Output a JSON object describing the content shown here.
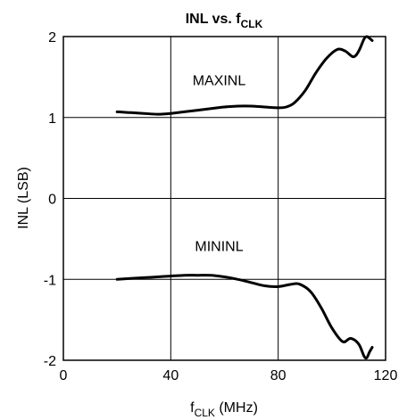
{
  "chart_data": {
    "type": "line",
    "title": {
      "main": "INL vs. f",
      "sub": "CLK"
    },
    "xlabel": {
      "main": "f",
      "sub": "CLK",
      "rest": " (MHz)"
    },
    "ylabel": "INL (LSB)",
    "xlim": [
      0,
      120
    ],
    "ylim": [
      -2,
      2
    ],
    "xticks": [
      0,
      40,
      80,
      120
    ],
    "xtick_labels": [
      "0",
      "40",
      "80",
      "120"
    ],
    "yticks": [
      -2,
      -1,
      0,
      1,
      2
    ],
    "ytick_labels": [
      "-2",
      "-1",
      "0",
      "1",
      "2"
    ],
    "grid": true,
    "series": [
      {
        "name": "MAXINL",
        "x": [
          20,
          25,
          30,
          35,
          40,
          45,
          50,
          55,
          60,
          65,
          70,
          75,
          80,
          83,
          86,
          90,
          94,
          98,
          102,
          105,
          108,
          110,
          112,
          113,
          114,
          115
        ],
        "y": [
          1.07,
          1.06,
          1.05,
          1.04,
          1.05,
          1.07,
          1.09,
          1.11,
          1.13,
          1.14,
          1.14,
          1.13,
          1.12,
          1.13,
          1.18,
          1.33,
          1.55,
          1.73,
          1.84,
          1.82,
          1.75,
          1.82,
          1.97,
          2.0,
          1.98,
          1.95
        ]
      },
      {
        "name": "MININL",
        "x": [
          20,
          25,
          30,
          35,
          40,
          45,
          50,
          55,
          60,
          65,
          70,
          75,
          80,
          85,
          88,
          92,
          96,
          100,
          104,
          107,
          110,
          112,
          113,
          114,
          115
        ],
        "y": [
          -1.0,
          -0.99,
          -0.98,
          -0.97,
          -0.96,
          -0.95,
          -0.95,
          -0.95,
          -0.97,
          -1.0,
          -1.04,
          -1.08,
          -1.09,
          -1.06,
          -1.06,
          -1.15,
          -1.35,
          -1.6,
          -1.77,
          -1.73,
          -1.8,
          -1.95,
          -1.97,
          -1.9,
          -1.84
        ]
      }
    ],
    "annotations": [
      {
        "text": "MAXINL",
        "x": 58,
        "y": 1.4
      },
      {
        "text": "MININL",
        "x": 58,
        "y": -0.65
      }
    ]
  }
}
